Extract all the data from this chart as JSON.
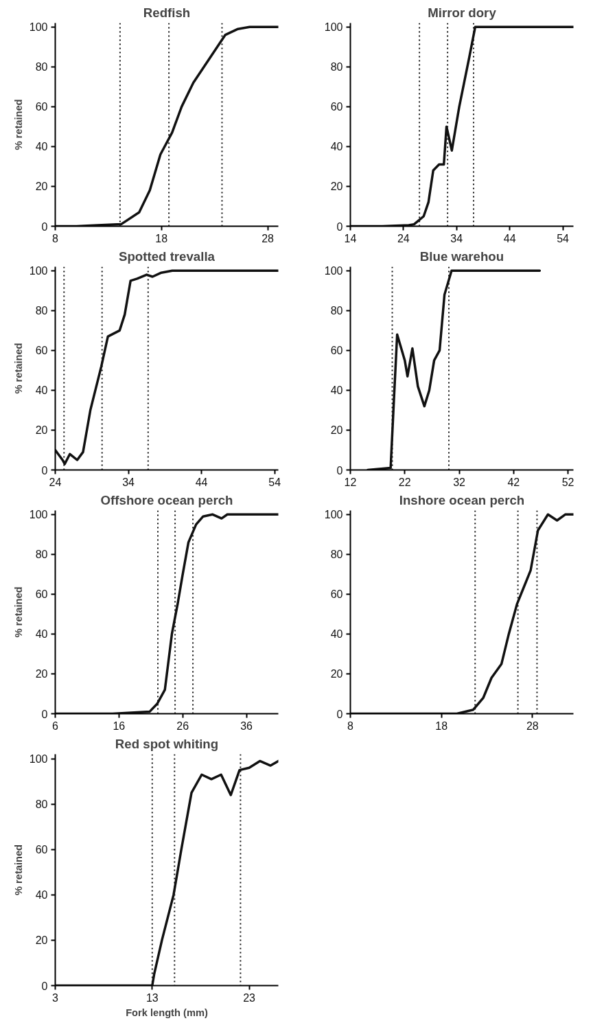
{
  "chart_data": [
    {
      "type": "line",
      "title": "Redfish",
      "ylabel": "% retained",
      "xlim": [
        8,
        29
      ],
      "ylim": [
        0,
        102
      ],
      "xticks": [
        8,
        18,
        28
      ],
      "yticks": [
        0,
        20,
        40,
        60,
        80,
        100
      ],
      "grid": false,
      "line_style": "solid",
      "color": "#111111",
      "x": [
        8,
        10,
        12,
        14.2,
        15.9,
        16.9,
        17.9,
        19,
        19.9,
        21,
        22.5,
        24,
        25.2,
        26.3,
        29
      ],
      "values": [
        0,
        0,
        0.5,
        1,
        7,
        18,
        36,
        47,
        60,
        72,
        84,
        96,
        99,
        100,
        100
      ],
      "ref_lines": [
        {
          "axis": "x",
          "value": 14.1,
          "line_style": "dotted"
        },
        {
          "axis": "x",
          "value": 18.7,
          "line_style": "dotted"
        },
        {
          "axis": "x",
          "value": 23.7,
          "line_style": "dotted"
        }
      ]
    },
    {
      "type": "line",
      "title": "Mirror dory",
      "xlim": [
        14,
        56
      ],
      "ylim": [
        0,
        102
      ],
      "xticks": [
        14,
        24,
        34,
        44,
        54
      ],
      "yticks": [
        0,
        20,
        40,
        60,
        80,
        100
      ],
      "grid": false,
      "line_style": "solid",
      "color": "#111111",
      "x": [
        14,
        20,
        25,
        26,
        27.8,
        28.7,
        29.6,
        30.7,
        31.6,
        32.1,
        33.1,
        34.5,
        36.4,
        37.5,
        56
      ],
      "values": [
        0,
        0,
        0.5,
        1,
        5,
        12,
        28,
        31,
        31,
        50,
        38,
        60,
        85,
        100,
        100
      ],
      "ref_lines": [
        {
          "axis": "x",
          "value": 27,
          "line_style": "dotted"
        },
        {
          "axis": "x",
          "value": 32.3,
          "line_style": "dotted"
        },
        {
          "axis": "x",
          "value": 37.2,
          "line_style": "dotted"
        }
      ]
    },
    {
      "type": "line",
      "title": "Spotted trevalla",
      "ylabel": "% retained",
      "xlim": [
        24,
        54.5
      ],
      "ylim": [
        0,
        102
      ],
      "xticks": [
        24,
        34,
        44,
        54
      ],
      "yticks": [
        0,
        20,
        40,
        60,
        80,
        100
      ],
      "grid": false,
      "line_style": "solid",
      "color": "#111111",
      "x": [
        24,
        25,
        25.3,
        26,
        27,
        27.8,
        28.8,
        30.3,
        31.2,
        32.8,
        33.5,
        34.3,
        35.2,
        36.5,
        37.3,
        38.5,
        40,
        54.5
      ],
      "values": [
        10,
        5,
        3,
        8,
        5,
        9,
        30,
        52,
        67,
        70,
        78,
        95,
        96,
        98,
        97,
        99,
        100,
        100
      ],
      "ref_lines": [
        {
          "axis": "x",
          "value": 25.2,
          "line_style": "dotted"
        },
        {
          "axis": "x",
          "value": 30.4,
          "line_style": "dotted"
        },
        {
          "axis": "x",
          "value": 36.7,
          "line_style": "dotted"
        }
      ]
    },
    {
      "type": "line",
      "title": "Blue warehou",
      "xlim": [
        12,
        53
      ],
      "ylim": [
        0,
        102
      ],
      "xticks": [
        12,
        22,
        32,
        42,
        52
      ],
      "yticks": [
        0,
        20,
        40,
        60,
        80,
        100
      ],
      "grid": false,
      "line_style": "solid",
      "color": "#111111",
      "x": [
        15.2,
        19.4,
        20,
        20.6,
        22,
        22.5,
        23.4,
        24.4,
        25.6,
        26.5,
        27.4,
        28.4,
        29.3,
        30.6,
        46.8
      ],
      "values": [
        0,
        1,
        35,
        68,
        55,
        47,
        61,
        42,
        32,
        40,
        55,
        60,
        88,
        100,
        100
      ],
      "ref_lines": [
        {
          "axis": "x",
          "value": 19.7,
          "line_style": "dotted"
        },
        {
          "axis": "x",
          "value": 30.1,
          "line_style": "dotted"
        }
      ]
    },
    {
      "type": "line",
      "title": "Offshore ocean perch",
      "ylabel": "% retained",
      "xlim": [
        6,
        41
      ],
      "ylim": [
        0,
        102
      ],
      "xticks": [
        6,
        16,
        26,
        36
      ],
      "yticks": [
        0,
        20,
        40,
        60,
        80,
        100
      ],
      "grid": false,
      "line_style": "solid",
      "color": "#111111",
      "x": [
        6,
        15,
        20.8,
        22,
        23.2,
        24.3,
        25.2,
        26,
        26.9,
        28.1,
        29.2,
        30.7,
        32.1,
        33,
        41
      ],
      "values": [
        0,
        0,
        1,
        5,
        12,
        40,
        55,
        70,
        86,
        95,
        99,
        100,
        98,
        100,
        100
      ],
      "ref_lines": [
        {
          "axis": "x",
          "value": 22.1,
          "line_style": "dotted"
        },
        {
          "axis": "x",
          "value": 24.8,
          "line_style": "dotted"
        },
        {
          "axis": "x",
          "value": 27.6,
          "line_style": "dotted"
        }
      ]
    },
    {
      "type": "line",
      "title": "Inshore ocean perch",
      "xlim": [
        8,
        32.5
      ],
      "ylim": [
        0,
        102
      ],
      "xticks": [
        8,
        18,
        28
      ],
      "yticks": [
        0,
        20,
        40,
        60,
        80,
        100
      ],
      "grid": false,
      "line_style": "solid",
      "color": "#111111",
      "x": [
        8,
        15,
        19.7,
        21.5,
        22.6,
        23.5,
        24.6,
        25.4,
        26.3,
        27.8,
        28.6,
        29.7,
        30.7,
        31.6,
        32.5
      ],
      "values": [
        0,
        0,
        0,
        2,
        8,
        18,
        25,
        40,
        55,
        72,
        92,
        100,
        97,
        100,
        100
      ],
      "ref_lines": [
        {
          "axis": "x",
          "value": 21.7,
          "line_style": "dotted"
        },
        {
          "axis": "x",
          "value": 26.4,
          "line_style": "dotted"
        },
        {
          "axis": "x",
          "value": 28.5,
          "line_style": "dotted"
        }
      ]
    },
    {
      "type": "line",
      "title": "Red spot whiting",
      "xlabel": "Fork length (mm)",
      "ylabel": "% retained",
      "xlim": [
        3,
        26
      ],
      "ylim": [
        0,
        102
      ],
      "xticks": [
        3,
        13,
        23
      ],
      "yticks": [
        0,
        20,
        40,
        60,
        80,
        100
      ],
      "grid": false,
      "line_style": "solid",
      "color": "#111111",
      "x": [
        3,
        8,
        13,
        13.2,
        14,
        15.2,
        16,
        17.05,
        18.1,
        19.1,
        20.1,
        21.1,
        22,
        23,
        24.1,
        25.2,
        26
      ],
      "values": [
        0,
        0,
        0,
        5,
        20,
        40,
        60,
        85,
        93,
        91,
        93,
        84,
        95,
        96,
        99,
        97,
        99
      ],
      "ref_lines": [
        {
          "axis": "x",
          "value": 13,
          "line_style": "dotted"
        },
        {
          "axis": "x",
          "value": 15.3,
          "line_style": "dotted"
        },
        {
          "axis": "x",
          "value": 22.1,
          "line_style": "dotted"
        }
      ]
    }
  ]
}
